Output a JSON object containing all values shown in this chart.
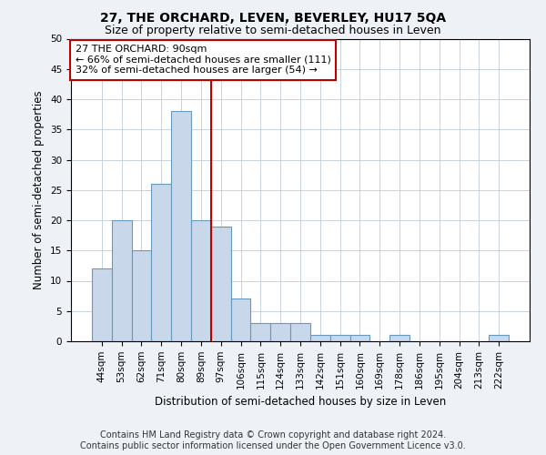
{
  "title": "27, THE ORCHARD, LEVEN, BEVERLEY, HU17 5QA",
  "subtitle": "Size of property relative to semi-detached houses in Leven",
  "xlabel": "Distribution of semi-detached houses by size in Leven",
  "ylabel": "Number of semi-detached properties",
  "categories": [
    "44sqm",
    "53sqm",
    "62sqm",
    "71sqm",
    "80sqm",
    "89sqm",
    "97sqm",
    "106sqm",
    "115sqm",
    "124sqm",
    "133sqm",
    "142sqm",
    "151sqm",
    "160sqm",
    "169sqm",
    "178sqm",
    "186sqm",
    "195sqm",
    "204sqm",
    "213sqm",
    "222sqm"
  ],
  "values": [
    12,
    20,
    15,
    26,
    38,
    20,
    19,
    7,
    3,
    3,
    3,
    1,
    1,
    1,
    0,
    1,
    0,
    0,
    0,
    0,
    1
  ],
  "bar_color": "#c8d8ea",
  "bar_edge_color": "#6699bb",
  "vline_x": 5.5,
  "vline_color": "#bb0000",
  "annotation_title": "27 THE ORCHARD: 90sqm",
  "annotation_line1": "← 66% of semi-detached houses are smaller (111)",
  "annotation_line2": "32% of semi-detached houses are larger (54) →",
  "annotation_box_color": "#ffffff",
  "annotation_box_edge_color": "#bb0000",
  "ylim": [
    0,
    50
  ],
  "yticks": [
    0,
    5,
    10,
    15,
    20,
    25,
    30,
    35,
    40,
    45,
    50
  ],
  "footer1": "Contains HM Land Registry data © Crown copyright and database right 2024.",
  "footer2": "Contains public sector information licensed under the Open Government Licence v3.0.",
  "background_color": "#eef2f7",
  "plot_bg_color": "#ffffff",
  "grid_color": "#c0ccd8",
  "title_fontsize": 10,
  "subtitle_fontsize": 9,
  "axis_label_fontsize": 8.5,
  "tick_fontsize": 7.5,
  "annotation_fontsize": 8,
  "footer_fontsize": 7
}
